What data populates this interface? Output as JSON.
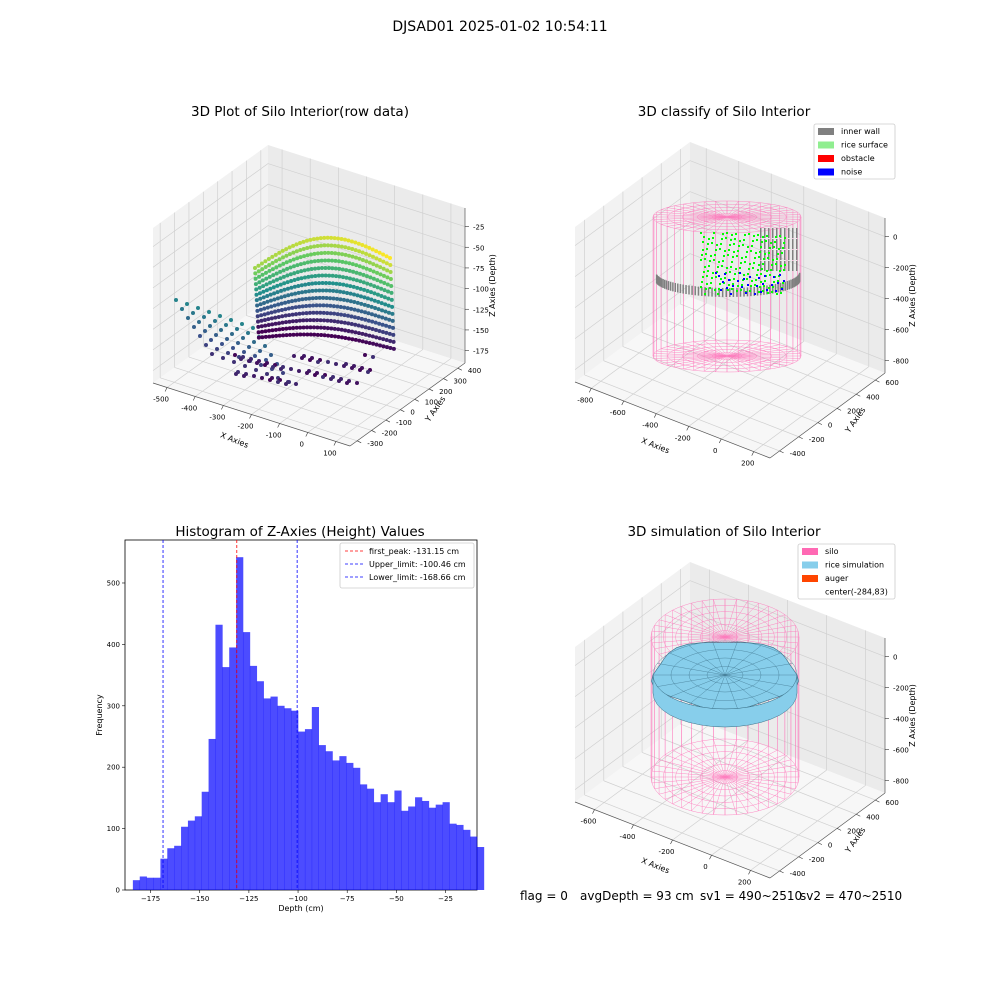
{
  "suptitle": "DJSAD01 2025-01-02 10:54:11",
  "panels": {
    "raw": {
      "title": "3D Plot of Silo Interior(row data)",
      "xlabel": "X Axies",
      "ylabel": "Y Axies",
      "zlabel": "Z Axies (Depth)",
      "xticks": [
        "-500",
        "-400",
        "-300",
        "-200",
        "-100",
        "0",
        "100"
      ],
      "yticks": [
        "-300",
        "-200",
        "-100",
        "0",
        "100",
        "200",
        "300",
        "400"
      ],
      "zticks": [
        "-25",
        "-50",
        "-75",
        "-100",
        "-125",
        "-150",
        "-175"
      ],
      "colormap": [
        "#440154",
        "#3b528b",
        "#21918c",
        "#5ec962",
        "#fde725"
      ]
    },
    "classify": {
      "title": "3D classify of Silo Interior",
      "xlabel": "X Axies",
      "ylabel": "Y Axies",
      "zlabel": "Z Axies (Depth)",
      "xticks": [
        "-800",
        "-600",
        "-400",
        "-200",
        "0",
        "200"
      ],
      "yticks": [
        "-400",
        "-200",
        "0",
        "200",
        "400",
        "600"
      ],
      "zticks": [
        "0",
        "-200",
        "-400",
        "-600",
        "-800"
      ],
      "legend": [
        {
          "label": "inner wall",
          "color": "#808080"
        },
        {
          "label": "rice surface",
          "color": "#90ee90"
        },
        {
          "label": "obstacle",
          "color": "#ff0000"
        },
        {
          "label": "noise",
          "color": "#0000ff"
        }
      ]
    },
    "simulation": {
      "title": "3D simulation of Silo Interior",
      "xlabel": "X Axies",
      "ylabel": "Y Axies",
      "zlabel": "Z Axies (Depth)",
      "xticks": [
        "-600",
        "-400",
        "-200",
        "0",
        "200"
      ],
      "yticks": [
        "-400",
        "-200",
        "0",
        "200",
        "400",
        "600"
      ],
      "zticks": [
        "0",
        "-200",
        "-400",
        "-600",
        "-800"
      ],
      "legend": [
        {
          "label": "silo",
          "color": "#ff69b4"
        },
        {
          "label": "rice simulation",
          "color": "#87ceeb"
        },
        {
          "label": "auger",
          "color": "#ff4500"
        },
        {
          "label": "center(-284,83)",
          "color": ""
        }
      ]
    }
  },
  "status": {
    "flag": "flag = 0",
    "avg_depth": "avgDepth = 93 cm",
    "sv1": "sv1 = 490~2510",
    "sv2": "sv2 = 470~2510"
  },
  "chart_data": {
    "type": "bar",
    "title": "Histogram of Z-Axies (Height) Values",
    "xlabel": "Depth (cm)",
    "ylabel": "Frequency",
    "xlim": [
      -188,
      -9
    ],
    "ylim": [
      0,
      570
    ],
    "xticks": [
      -175,
      -150,
      -125,
      -100,
      -75,
      -50,
      -25
    ],
    "yticks": [
      0,
      100,
      200,
      300,
      400,
      500
    ],
    "bar_color": "#0000ff",
    "bins": {
      "start": -184.0,
      "width": 3.5,
      "values": [
        16,
        22,
        20,
        20,
        51,
        68,
        72,
        103,
        113,
        120,
        160,
        246,
        432,
        363,
        395,
        542,
        420,
        365,
        340,
        312,
        315,
        300,
        296,
        292,
        258,
        262,
        298,
        236,
        226,
        211,
        218,
        207,
        199,
        172,
        165,
        143,
        156,
        143,
        162,
        129,
        136,
        151,
        145,
        134,
        139,
        143,
        108,
        106,
        98,
        87,
        70
      ]
    },
    "lines": [
      {
        "name": "first_peak: -131.15 cm",
        "x": -131.15,
        "color": "#ff0000"
      },
      {
        "name": "Upper_limit: -100.46 cm",
        "x": -100.46,
        "color": "#0000ff"
      },
      {
        "name": "Lower_limit: -168.66 cm",
        "x": -168.66,
        "color": "#0000ff"
      }
    ]
  }
}
